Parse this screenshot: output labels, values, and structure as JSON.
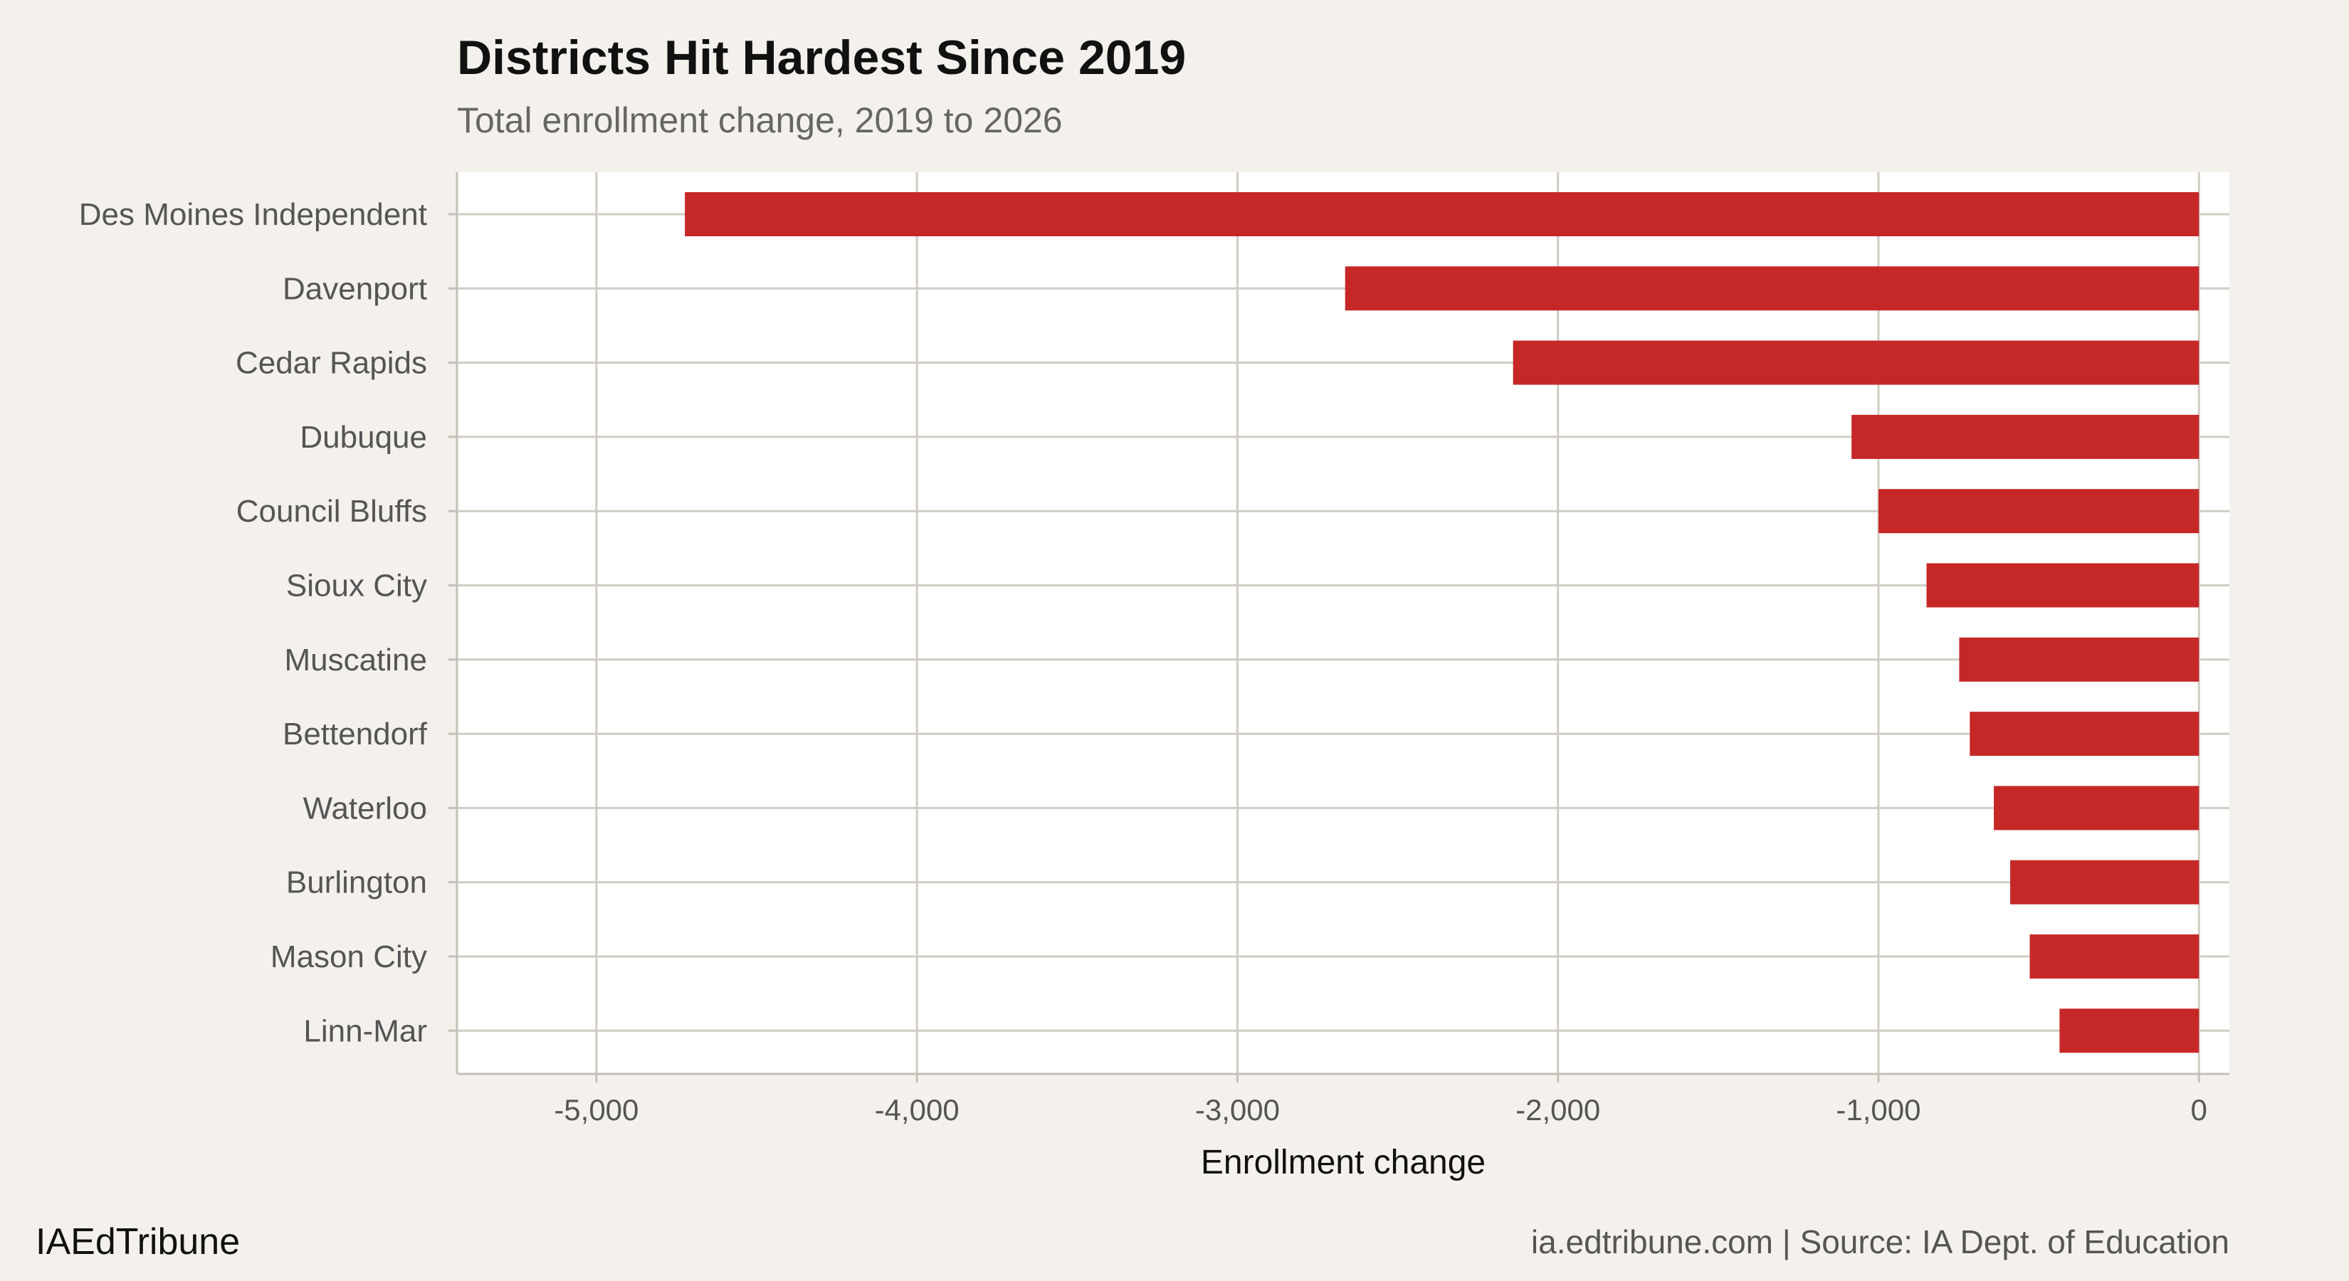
{
  "chart_data": {
    "type": "bar",
    "orientation": "horizontal",
    "title": "Districts Hit Hardest Since 2019",
    "subtitle": "Total enrollment change, 2019 to 2026",
    "xlabel": "Enrollment change",
    "ylabel": "",
    "xlim": [
      -5435,
      95
    ],
    "xticks": [
      -5000,
      -4000,
      -3000,
      -2000,
      -1000,
      0
    ],
    "xtick_labels": [
      "-5,000",
      "-4,000",
      "-3,000",
      "-2,000",
      "-1,000",
      "0"
    ],
    "grid": true,
    "bar_color": "#c62828",
    "categories": [
      "Des Moines Independent",
      "Davenport",
      "Cedar Rapids",
      "Dubuque",
      "Council Bluffs",
      "Sioux City",
      "Muscatine",
      "Bettendorf",
      "Waterloo",
      "Burlington",
      "Mason City",
      "Linn-Mar"
    ],
    "values": [
      -4724,
      -2664,
      -2140,
      -1084,
      -1000,
      -850,
      -748,
      -715,
      -640,
      -589,
      -528,
      -435
    ]
  },
  "footer": {
    "brand": "IAEdTribune",
    "source": "ia.edtribune.com | Source: IA Dept. of Education"
  }
}
